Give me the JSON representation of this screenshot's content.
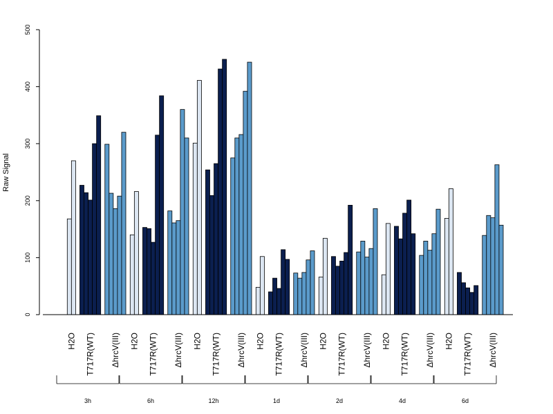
{
  "chart_data": {
    "type": "bar",
    "title": "",
    "xlabel": "",
    "ylabel": "Raw Signal",
    "ylim": [
      0,
      500
    ],
    "yticks": [
      0,
      100,
      200,
      300,
      400,
      500
    ],
    "colors": {
      "H2O": "#dce6f2",
      "T717R(WT)": "#0b1f4f",
      "ΔhrcV(III)": "#5b9bcb"
    },
    "groups": [
      {
        "label": "3h",
        "conditions": [
          {
            "label": "H2O",
            "values": [
              168,
              270
            ]
          },
          {
            "label": "T717R(WT)",
            "values": [
              227,
              214,
              201,
              300,
              349
            ]
          },
          {
            "label": "ΔhrcV(III)",
            "values": [
              299,
              213,
              186,
              208,
              320
            ]
          }
        ]
      },
      {
        "label": "6h",
        "conditions": [
          {
            "label": "H2O",
            "values": [
              140,
              216
            ]
          },
          {
            "label": "T717R(WT)",
            "values": [
              153,
              151,
              127,
              315,
              384
            ]
          },
          {
            "label": "ΔhrcV(III)",
            "values": [
              182,
              161,
              165,
              360,
              310
            ]
          }
        ]
      },
      {
        "label": "12h",
        "conditions": [
          {
            "label": "H2O",
            "values": [
              301,
              411
            ]
          },
          {
            "label": "T717R(WT)",
            "values": [
              254,
              209,
              265,
              431,
              448
            ]
          },
          {
            "label": "ΔhrcV(III)",
            "values": [
              275,
              310,
              316,
              392,
              443
            ]
          }
        ]
      },
      {
        "label": "1d",
        "conditions": [
          {
            "label": "H2O",
            "values": [
              48,
              102
            ]
          },
          {
            "label": "T717R(WT)",
            "values": [
              40,
              64,
              46,
              114,
              97
            ]
          },
          {
            "label": "ΔhrcV(III)",
            "values": [
              73,
              64,
              74,
              96,
              112
            ]
          }
        ]
      },
      {
        "label": "2d",
        "conditions": [
          {
            "label": "H2O",
            "values": [
              66,
              134
            ]
          },
          {
            "label": "T717R(WT)",
            "values": [
              102,
              85,
              94,
              109,
              192
            ]
          },
          {
            "label": "ΔhrcV(III)",
            "values": [
              110,
              129,
              101,
              116,
              186
            ]
          }
        ]
      },
      {
        "label": "4d",
        "conditions": [
          {
            "label": "H2O",
            "values": [
              70,
              160
            ]
          },
          {
            "label": "T717R(WT)",
            "values": [
              155,
              133,
              178,
              201,
              142
            ]
          },
          {
            "label": "ΔhrcV(III)",
            "values": [
              104,
              129,
              113,
              142,
              185
            ]
          }
        ]
      },
      {
        "label": "6d",
        "conditions": [
          {
            "label": "H2O",
            "values": [
              169,
              221
            ]
          },
          {
            "label": "T717R(WT)",
            "values": [
              74,
              56,
              47,
              39,
              51
            ]
          },
          {
            "label": "ΔhrcV(III)",
            "values": [
              139,
              174,
              170,
              263,
              157
            ]
          }
        ]
      }
    ]
  }
}
